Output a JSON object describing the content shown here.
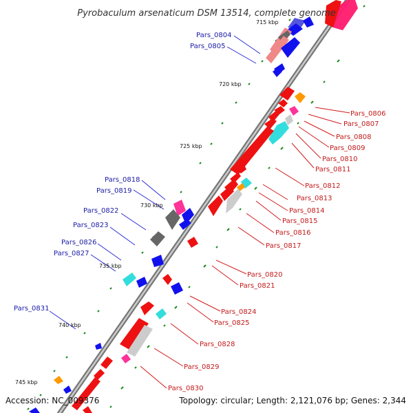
{
  "title": "Pyrobaculum arsenaticum DSM 13514, complete genome",
  "accession": "Accession: NC_009376",
  "topology": "Topology: circular; Length: 2,121,076 bp; Genes: 2,344",
  "scale_labels": [
    "715 kbp",
    "720 kbp",
    "725 kbp",
    "730 kbp",
    "735 kbp",
    "740 kbp",
    "745 kbp"
  ],
  "left_genes": [
    "Pars_0804",
    "Pars_0805",
    "Pars_0818",
    "Pars_0819",
    "Pars_0822",
    "Pars_0823",
    "Pars_0826",
    "Pars_0827",
    "Pars_0831"
  ],
  "right_genes": [
    "Pars_0806",
    "Pars_0807",
    "Pars_0808",
    "Pars_0809",
    "Pars_0810",
    "Pars_0811",
    "Pars_0812",
    "Pars_0813",
    "Pars_0814",
    "Pars_0815",
    "Pars_0816",
    "Pars_0817",
    "Pars_0820",
    "Pars_0821",
    "Pars_0824",
    "Pars_0825",
    "Pars_0828",
    "Pars_0829",
    "Pars_0830"
  ],
  "colors": {
    "forward_gene": "#ee1111",
    "reverse_gene": "#1111ee",
    "rrna_like": "#ff3399",
    "trna_like": "#33dddd",
    "other": "#ff9900",
    "pseudo": "#aaaaaa",
    "backbone": "#888888",
    "label_left": "#1a1aa6",
    "label_right": "#c21a1a"
  }
}
